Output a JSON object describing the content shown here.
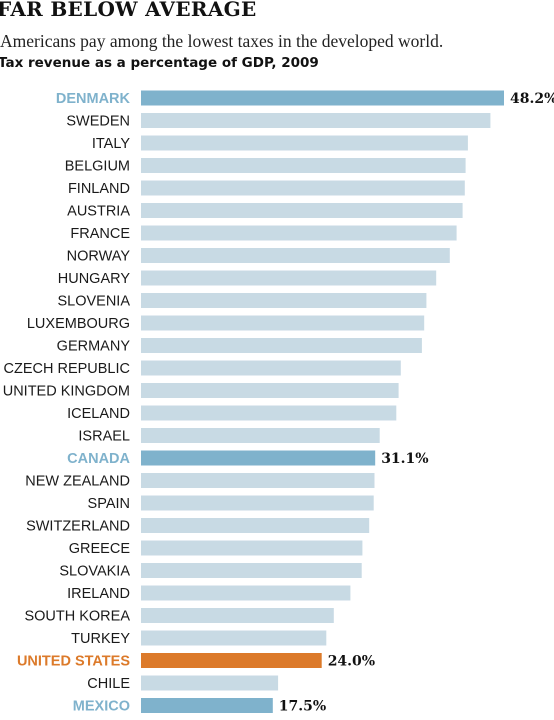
{
  "header": {
    "title": "FAR BELOW AVERAGE",
    "subtitle": "Americans pay among the lowest taxes in the developed world.",
    "chart_label": "Tax revenue as a percentage of GDP, 2009"
  },
  "colors": {
    "default_bar": "#c8dae4",
    "highlight_blue": "#7fb2cc",
    "highlight_orange": "#dc7a2a",
    "default_text": "#1a1a1a"
  },
  "chart_data": {
    "type": "bar",
    "orientation": "horizontal",
    "title": "FAR BELOW AVERAGE",
    "subtitle": "Americans pay among the lowest taxes in the developed world.",
    "xlabel": "",
    "ylabel": "",
    "xlim": [
      0,
      48.2
    ],
    "grid": false,
    "categories": [
      "DENMARK",
      "SWEDEN",
      "ITALY",
      "BELGIUM",
      "FINLAND",
      "AUSTRIA",
      "FRANCE",
      "NORWAY",
      "HUNGARY",
      "SLOVENIA",
      "LUXEMBOURG",
      "GERMANY",
      "CZECH REPUBLIC",
      "UNITED KINGDOM",
      "ICELAND",
      "ISRAEL",
      "CANADA",
      "NEW ZEALAND",
      "SPAIN",
      "SWITZERLAND",
      "GREECE",
      "SLOVAKIA",
      "IRELAND",
      "SOUTH KOREA",
      "TURKEY",
      "UNITED STATES",
      "CHILE",
      "MEXICO"
    ],
    "values": [
      48.2,
      46.4,
      43.4,
      43.1,
      43.0,
      42.7,
      41.9,
      41.0,
      39.2,
      37.9,
      37.6,
      37.3,
      34.5,
      34.2,
      33.9,
      31.7,
      31.1,
      31.0,
      30.9,
      30.3,
      29.4,
      29.3,
      27.8,
      25.6,
      24.6,
      24.0,
      18.2,
      17.5
    ],
    "highlights": {
      "DENMARK": "blue",
      "CANADA": "blue",
      "UNITED STATES": "orange",
      "MEXICO": "blue"
    },
    "value_labels": {
      "DENMARK": "48.2%",
      "CANADA": "31.1%",
      "UNITED STATES": "24.0%",
      "MEXICO": "17.5%"
    }
  }
}
